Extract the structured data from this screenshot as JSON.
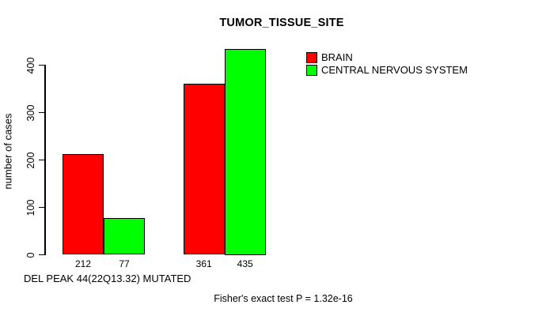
{
  "chart": {
    "title": "TUMOR_TISSUE_SITE",
    "ylabel": "number of cases",
    "xlabel": "DEL PEAK 44(22Q13.32) MUTATED",
    "annotation": "Fisher's exact test P = 1.32e-16"
  },
  "colors": {
    "brain": "#FF0000",
    "cns": "#00FF00",
    "axis": "#000000",
    "background": "#FFFFFF"
  },
  "chart_data": {
    "type": "bar",
    "title": "TUMOR_TISSUE_SITE",
    "xlabel": "DEL PEAK 44(22Q13.32) MUTATED",
    "ylabel": "number of cases",
    "categories": [
      "",
      ""
    ],
    "series": [
      {
        "name": "BRAIN",
        "color": "#FF0000",
        "values": [
          212,
          361
        ]
      },
      {
        "name": "CENTRAL NERVOUS SYSTEM",
        "color": "#00FF00",
        "values": [
          77,
          435
        ]
      }
    ],
    "bar_value_labels": [
      [
        212,
        77
      ],
      [
        361,
        435
      ]
    ],
    "yticks": [
      0,
      100,
      200,
      300,
      400
    ],
    "ylim": [
      0,
      440
    ],
    "grid": false,
    "legend_position": "top-right",
    "annotation": "Fisher's exact test P = 1.32e-16"
  }
}
